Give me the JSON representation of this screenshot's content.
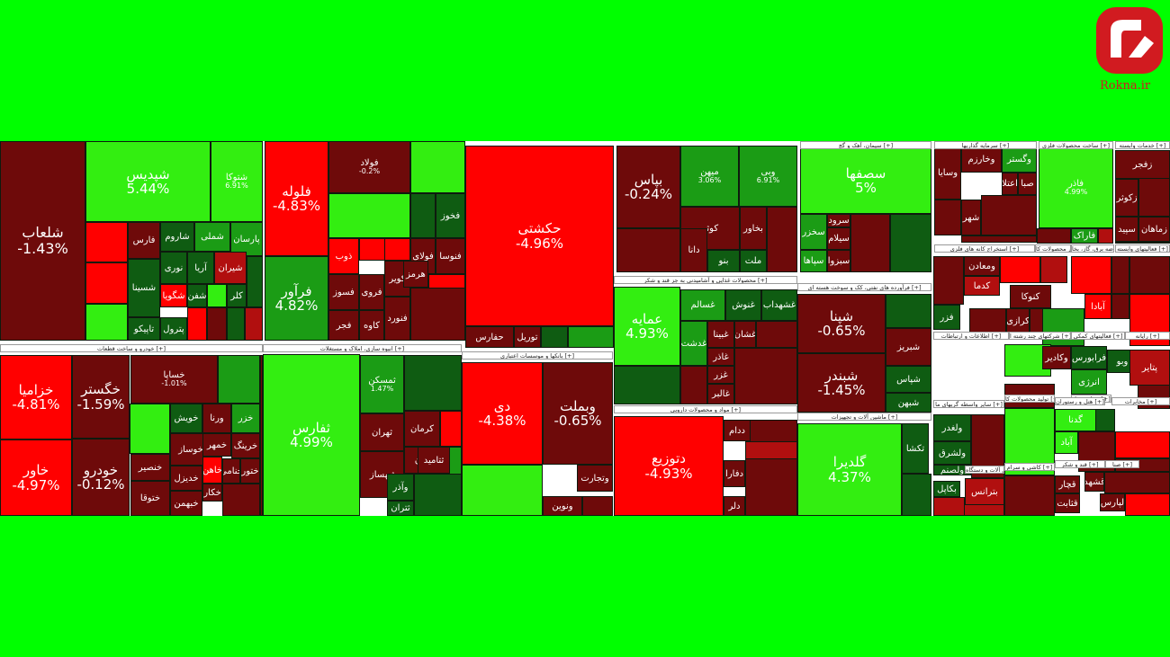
{
  "logo": {
    "text": "Rokna.ir",
    "color": "#d11b20",
    "icon": "rokna-logo-icon"
  },
  "colors": {
    "background": "#00ff00",
    "red": "#ff0000",
    "dark_red": "#6e0a0a",
    "mid_red": "#b10f0f",
    "green": "#33ee11",
    "mid_green": "#1b9c15",
    "dark_green": "#0f5c12"
  },
  "sectors": [
    "خودرو و ساخت قطعات [+]",
    "انبوه سازی، املاک و مستغلات [+]",
    "بانکها و موسسات اعتباری [+]",
    "محصولات غذایی و آشامیدنی به جز قند و شکر [+]",
    "مواد و محصولات دارویی [+]",
    "سیمان، آهک و گچ [+]",
    "فرآورده های نفتی، کک و سوخت هسته ای [+]",
    "ماشین آلات و تجهیزات [+]",
    "سرمایه گذاریها [+]",
    "ساخت محصولات فلزی [+]",
    "خدمات وابسته [+]",
    "استخراج کانه های فلزی [+]",
    "سایر محصولات کا [+]",
    "عرضه برق، گاز، بخا [+]",
    "فعالیتهای وابسته [+]",
    "اطلاعات و ارتباطات [+]",
    "شرکتهای چند رشته ا [+]",
    "فعالیتهای کمکی [+]",
    "رایانه [+]",
    "حمل و نقل [+]",
    "تولید محصولات کا [+]",
    "سایر واسطه گریهای ما [+]",
    "هتل و رستوران [+]",
    "مخابرات [+]",
    "ماشین آلات و دستگاه [+]",
    "کاشی و سرام [+]",
    "قند و شکر [+]",
    "صنا [+]"
  ],
  "tiles": [
    {
      "symbol": "شلعاب",
      "change": "-1.43%"
    },
    {
      "symbol": "شپدیس",
      "change": "5.44%"
    },
    {
      "symbol": "شتوکا",
      "change": "6.91%"
    },
    {
      "symbol": "فارس",
      "change": ""
    },
    {
      "symbol": "شاروم",
      "change": ""
    },
    {
      "symbol": "شملی",
      "change": ""
    },
    {
      "symbol": "پارسان",
      "change": ""
    },
    {
      "symbol": "نوری",
      "change": ""
    },
    {
      "symbol": "آریا",
      "change": ""
    },
    {
      "symbol": "شیران",
      "change": ""
    },
    {
      "symbol": "شگویا",
      "change": ""
    },
    {
      "symbol": "شفن",
      "change": ""
    },
    {
      "symbol": "کلر",
      "change": ""
    },
    {
      "symbol": "شسینا",
      "change": ""
    },
    {
      "symbol": "تاپیکو",
      "change": ""
    },
    {
      "symbol": "پترول",
      "change": ""
    },
    {
      "symbol": "فلوله",
      "change": "-4.83%"
    },
    {
      "symbol": "فرآور",
      "change": "4.82%"
    },
    {
      "symbol": "فولاد",
      "change": "-0.2%"
    },
    {
      "symbol": "فخوز",
      "change": ""
    },
    {
      "symbol": "ذوب",
      "change": ""
    },
    {
      "symbol": "فولای",
      "change": ""
    },
    {
      "symbol": "فنوسا",
      "change": ""
    },
    {
      "symbol": "فسوز",
      "change": ""
    },
    {
      "symbol": "فروی",
      "change": ""
    },
    {
      "symbol": "کویر",
      "change": ""
    },
    {
      "symbol": "هرمز",
      "change": ""
    },
    {
      "symbol": "فجر",
      "change": ""
    },
    {
      "symbol": "کاوه",
      "change": ""
    },
    {
      "symbol": "فنورد",
      "change": ""
    },
    {
      "symbol": "حکشتی",
      "change": "-4.96%"
    },
    {
      "symbol": "حفارس",
      "change": ""
    },
    {
      "symbol": "توریل",
      "change": ""
    },
    {
      "symbol": "بپاس",
      "change": "-0.24%"
    },
    {
      "symbol": "میهن",
      "change": "3.06%"
    },
    {
      "symbol": "وبی",
      "change": "6.91%"
    },
    {
      "symbol": "کوثر",
      "change": ""
    },
    {
      "symbol": "بخاور",
      "change": ""
    },
    {
      "symbol": "دانا",
      "change": ""
    },
    {
      "symbol": "ملت",
      "change": ""
    },
    {
      "symbol": "بنو",
      "change": ""
    },
    {
      "symbol": "سصفها",
      "change": "5%"
    },
    {
      "symbol": "سخزر",
      "change": ""
    },
    {
      "symbol": "سیلام",
      "change": ""
    },
    {
      "symbol": "سبزوا",
      "change": ""
    },
    {
      "symbol": "سپاها",
      "change": ""
    },
    {
      "symbol": "سرود",
      "change": ""
    },
    {
      "symbol": "وسایا",
      "change": ""
    },
    {
      "symbol": "وخارزم",
      "change": ""
    },
    {
      "symbol": "وگستر",
      "change": ""
    },
    {
      "symbol": "اعتلا",
      "change": ""
    },
    {
      "symbol": "صبا",
      "change": ""
    },
    {
      "symbol": "شهر",
      "change": ""
    },
    {
      "symbol": "فاذر",
      "change": "4.99%"
    },
    {
      "symbol": "فاراک",
      "change": ""
    },
    {
      "symbol": "زفجر",
      "change": ""
    },
    {
      "symbol": "زکوثر",
      "change": ""
    },
    {
      "symbol": "سپید",
      "change": ""
    },
    {
      "symbol": "زماهان",
      "change": ""
    },
    {
      "symbol": "خزامیا",
      "change": "-4.81%"
    },
    {
      "symbol": "خاور",
      "change": "-4.97%"
    },
    {
      "symbol": "خگستر",
      "change": "-1.59%"
    },
    {
      "symbol": "خودرو",
      "change": "-0.12%"
    },
    {
      "symbol": "خساپا",
      "change": "-1.01%"
    },
    {
      "symbol": "خویش",
      "change": ""
    },
    {
      "symbol": "ورنا",
      "change": ""
    },
    {
      "symbol": "خزر",
      "change": ""
    },
    {
      "symbol": "خوساز",
      "change": ""
    },
    {
      "symbol": "خمهر",
      "change": ""
    },
    {
      "symbol": "خرینگ",
      "change": ""
    },
    {
      "symbol": "خنصیر",
      "change": ""
    },
    {
      "symbol": "خاهن",
      "change": ""
    },
    {
      "symbol": "ختور",
      "change": ""
    },
    {
      "symbol": "ختوقا",
      "change": ""
    },
    {
      "symbol": "خدیزل",
      "change": ""
    },
    {
      "symbol": "خکار",
      "change": ""
    },
    {
      "symbol": "خبهمن",
      "change": ""
    },
    {
      "symbol": "خنامی",
      "change": ""
    },
    {
      "symbol": "ثفارس",
      "change": "4.99%"
    },
    {
      "symbol": "ثمسکن",
      "change": "1.47%"
    },
    {
      "symbol": "ثهران",
      "change": ""
    },
    {
      "symbol": "کرمان",
      "change": ""
    },
    {
      "symbol": "ثامان",
      "change": ""
    },
    {
      "symbol": "ثتامید",
      "change": ""
    },
    {
      "symbol": "ثبهساز",
      "change": ""
    },
    {
      "symbol": "وآذر",
      "change": ""
    },
    {
      "symbol": "ثتران",
      "change": ""
    },
    {
      "symbol": "دی",
      "change": "-4.38%"
    },
    {
      "symbol": "وبملت",
      "change": "-0.65%"
    },
    {
      "symbol": "وتجارت",
      "change": ""
    },
    {
      "symbol": "ونوین",
      "change": ""
    },
    {
      "symbol": "عمایه",
      "change": "4.93%"
    },
    {
      "symbol": "غسالم",
      "change": ""
    },
    {
      "symbol": "غنوش",
      "change": ""
    },
    {
      "symbol": "غشهداب",
      "change": ""
    },
    {
      "symbol": "غدشت",
      "change": ""
    },
    {
      "symbol": "غبینا",
      "change": ""
    },
    {
      "symbol": "غشان",
      "change": ""
    },
    {
      "symbol": "غاذر",
      "change": ""
    },
    {
      "symbol": "غزر",
      "change": ""
    },
    {
      "symbol": "غالبر",
      "change": ""
    },
    {
      "symbol": "دتوزیع",
      "change": "-4.93%"
    },
    {
      "symbol": "ددام",
      "change": ""
    },
    {
      "symbol": "دفارا",
      "change": ""
    },
    {
      "symbol": "دلر",
      "change": ""
    },
    {
      "symbol": "شپنا",
      "change": "-0.65%"
    },
    {
      "symbol": "شبندر",
      "change": "-1.45%"
    },
    {
      "symbol": "شبریز",
      "change": ""
    },
    {
      "symbol": "شپاس",
      "change": ""
    },
    {
      "symbol": "شبهن",
      "change": ""
    },
    {
      "symbol": "گلدیرا",
      "change": "4.37%"
    },
    {
      "symbol": "تکشا",
      "change": ""
    },
    {
      "symbol": "ومعادن",
      "change": ""
    },
    {
      "symbol": "کدما",
      "change": ""
    },
    {
      "symbol": "کنوکا",
      "change": ""
    },
    {
      "symbol": "کرازی",
      "change": ""
    },
    {
      "symbol": "فزر",
      "change": ""
    },
    {
      "symbol": "آبادا",
      "change": ""
    },
    {
      "symbol": "وکادیر",
      "change": ""
    },
    {
      "symbol": "فرابورس",
      "change": ""
    },
    {
      "symbol": "وبو",
      "change": ""
    },
    {
      "symbol": "انرژی",
      "change": ""
    },
    {
      "symbol": "پتایر",
      "change": ""
    },
    {
      "symbol": "ولغدر",
      "change": ""
    },
    {
      "symbol": "ولشرق",
      "change": ""
    },
    {
      "symbol": "ولصنم",
      "change": ""
    },
    {
      "symbol": "بکاپل",
      "change": ""
    },
    {
      "symbol": "بترانس",
      "change": ""
    },
    {
      "symbol": "گدنا",
      "change": ""
    },
    {
      "symbol": "آباد",
      "change": ""
    },
    {
      "symbol": "قچار",
      "change": ""
    },
    {
      "symbol": "قثابت",
      "change": ""
    },
    {
      "symbol": "قشهد",
      "change": ""
    },
    {
      "symbol": "لپارس",
      "change": ""
    }
  ]
}
